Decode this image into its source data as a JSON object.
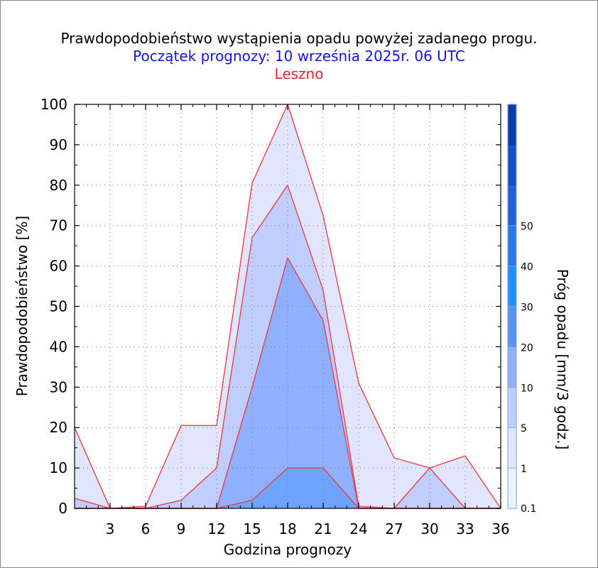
{
  "chart_data": {
    "type": "area",
    "title": "Prawdopodobieństwo wystąpienia opadu powyżej zadanego progu.",
    "subtitle": "Początek prognozy: 10 września 2025r. 06 UTC",
    "location": "Leszno",
    "xlabel": "Godzina prognozy",
    "ylabel": "Prawdopodobieństwo [%]",
    "xlim": [
      0,
      36
    ],
    "ylim": [
      0,
      100
    ],
    "x_ticks": [
      3,
      6,
      9,
      12,
      15,
      18,
      21,
      24,
      27,
      30,
      33,
      36
    ],
    "y_ticks": [
      0,
      10,
      20,
      30,
      40,
      50,
      60,
      70,
      80,
      90,
      100
    ],
    "grid": true,
    "x": [
      0,
      3,
      6,
      9,
      12,
      15,
      18,
      21,
      24,
      27,
      30,
      33,
      36
    ],
    "series": [
      {
        "threshold": 0.1,
        "color": "#dfe6fe",
        "values": [
          20,
          0,
          0.5,
          20.5,
          20.5,
          80.5,
          100,
          72.5,
          31,
          12.5,
          10,
          13,
          0
        ]
      },
      {
        "threshold": 1,
        "color": "#bfceff",
        "values": [
          2.5,
          0,
          0,
          2,
          10,
          67,
          80,
          54,
          0.5,
          0,
          10,
          0,
          0
        ]
      },
      {
        "threshold": 5,
        "color": "#8fb0ff",
        "values": [
          0,
          0,
          0,
          0,
          0,
          30,
          62,
          46.5,
          0,
          0,
          0,
          0,
          0
        ]
      },
      {
        "threshold": 10,
        "color": "#6ea3ff",
        "values": [
          0,
          0,
          0,
          0,
          0,
          2,
          10,
          10,
          0,
          0,
          0,
          0,
          0
        ]
      }
    ],
    "colorbar": {
      "label": "Próg opadu [mm/3 godz.]",
      "tick_labels": [
        "0.1",
        "1",
        "5",
        "10",
        "20",
        "30",
        "40",
        "50"
      ],
      "colors": [
        "#eef2ff",
        "#dfe6fe",
        "#bfceff",
        "#8fb0ff",
        "#5a94f0",
        "#1e90ff",
        "#2a78e6",
        "#1e62d6",
        "#154fc4",
        "#0a3da8"
      ]
    },
    "line_color": "#e8414a"
  }
}
